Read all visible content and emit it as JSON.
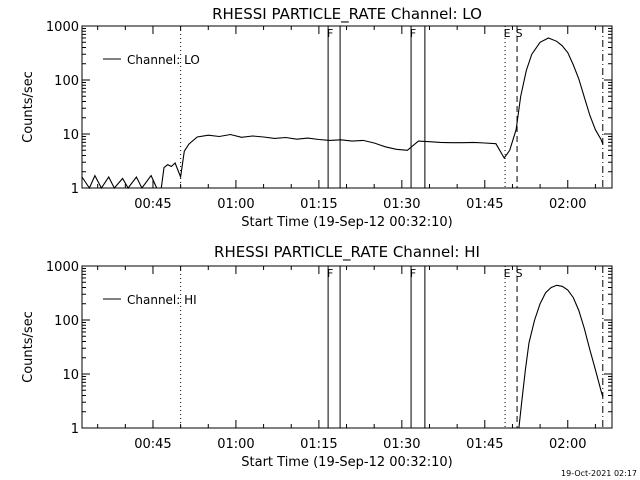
{
  "footer": {
    "timestamp": "19-Oct-2021 02:17"
  },
  "chart_data": [
    {
      "type": "line",
      "title": "RHESSI PARTICLE_RATE Channel: LO",
      "xlabel": "Start Time (19-Sep-12 00:32:10)",
      "ylabel": "Counts/sec",
      "yscale": "log",
      "ylim": [
        1,
        1000
      ],
      "xlim": [
        "00:32:10",
        "02:08:00"
      ],
      "x_ticks": [
        "00:45",
        "01:00",
        "01:15",
        "01:30",
        "01:45",
        "02:00"
      ],
      "y_ticks": [
        "1",
        "10",
        "100",
        "1000"
      ],
      "legend": {
        "position": "top-left",
        "label": "Channel: LO"
      },
      "markers": [
        {
          "time": "00:50:00",
          "style": "dotted",
          "label": ""
        },
        {
          "time": "01:16:40",
          "style": "solid",
          "label": "F"
        },
        {
          "time": "01:18:50",
          "style": "solid",
          "label": ""
        },
        {
          "time": "01:31:40",
          "style": "solid",
          "label": "F"
        },
        {
          "time": "01:34:10",
          "style": "solid",
          "label": ""
        },
        {
          "time": "01:48:40",
          "style": "dotted",
          "label": "E"
        },
        {
          "time": "01:50:50",
          "style": "dashed",
          "label": "S"
        },
        {
          "time": "02:06:20",
          "style": "dashdot",
          "label": ""
        }
      ],
      "series": [
        {
          "name": "Channel: LO",
          "x": [
            "00:32:10",
            "00:33:30",
            "00:34:30",
            "00:35:40",
            "00:37:00",
            "00:38:00",
            "00:39:30",
            "00:40:30",
            "00:42:00",
            "00:43:00",
            "00:44:40",
            "00:45:40",
            "00:46:30",
            "00:47:00",
            "00:47:40",
            "00:48:20",
            "00:49:00",
            "00:50:00",
            "00:50:40",
            "00:51:30",
            "00:53:00",
            "00:55:00",
            "00:57:00",
            "00:59:00",
            "01:01:00",
            "01:03:00",
            "01:05:00",
            "01:07:00",
            "01:09:00",
            "01:11:00",
            "01:13:00",
            "01:15:00",
            "01:17:00",
            "01:19:00",
            "01:21:00",
            "01:23:00",
            "01:25:00",
            "01:27:00",
            "01:29:00",
            "01:31:00",
            "01:33:00",
            "01:35:00",
            "01:37:00",
            "01:39:00",
            "01:41:00",
            "01:43:00",
            "01:45:00",
            "01:47:00",
            "01:48:30",
            "01:49:30",
            "01:50:40",
            "01:51:30",
            "01:52:30",
            "01:53:30",
            "01:55:00",
            "01:56:30",
            "01:58:00",
            "01:59:00",
            "02:00:00",
            "02:01:00",
            "02:02:00",
            "02:03:00",
            "02:04:00",
            "02:05:00",
            "02:06:00",
            "02:06:20"
          ],
          "y": [
            1.6,
            1.0,
            1.7,
            1.0,
            1.6,
            1.0,
            1.5,
            1.0,
            1.6,
            1.0,
            1.7,
            1.0,
            1.0,
            2.4,
            2.7,
            2.5,
            2.9,
            1.6,
            4.8,
            6.5,
            8.8,
            9.5,
            9.0,
            9.8,
            8.7,
            9.2,
            8.8,
            8.3,
            8.6,
            8.0,
            8.4,
            7.9,
            7.6,
            7.8,
            7.4,
            7.6,
            6.8,
            5.8,
            5.2,
            5.0,
            7.4,
            7.2,
            7.0,
            6.9,
            6.9,
            7.0,
            6.8,
            6.6,
            3.6,
            5.0,
            12,
            50,
            150,
            300,
            500,
            600,
            520,
            430,
            320,
            190,
            105,
            48,
            22,
            12,
            8.0,
            6.5
          ]
        }
      ]
    },
    {
      "type": "line",
      "title": "RHESSI PARTICLE_RATE Channel: HI",
      "xlabel": "Start Time (19-Sep-12 00:32:10)",
      "ylabel": "Counts/sec",
      "yscale": "log",
      "ylim": [
        1,
        1000
      ],
      "xlim": [
        "00:32:10",
        "02:08:00"
      ],
      "x_ticks": [
        "00:45",
        "01:00",
        "01:15",
        "01:30",
        "01:45",
        "02:00"
      ],
      "y_ticks": [
        "1",
        "10",
        "100",
        "1000"
      ],
      "legend": {
        "position": "top-left",
        "label": "Channel: HI"
      },
      "markers": [
        {
          "time": "00:50:00",
          "style": "dotted",
          "label": ""
        },
        {
          "time": "01:16:40",
          "style": "solid",
          "label": "F"
        },
        {
          "time": "01:18:50",
          "style": "solid",
          "label": ""
        },
        {
          "time": "01:31:40",
          "style": "solid",
          "label": "F"
        },
        {
          "time": "01:34:10",
          "style": "solid",
          "label": ""
        },
        {
          "time": "01:48:40",
          "style": "dotted",
          "label": "E"
        },
        {
          "time": "01:50:50",
          "style": "dashed",
          "label": "S"
        },
        {
          "time": "02:06:20",
          "style": "dashdot",
          "label": ""
        }
      ],
      "series": [
        {
          "name": "Channel: HI",
          "x": [
            "01:51:10",
            "01:51:40",
            "01:52:20",
            "01:53:00",
            "01:54:00",
            "01:55:00",
            "01:56:00",
            "01:57:00",
            "01:58:00",
            "01:59:00",
            "02:00:00",
            "02:01:00",
            "02:02:00",
            "02:03:00",
            "02:04:00",
            "02:05:00",
            "02:06:00",
            "02:06:20"
          ],
          "y": [
            1.0,
            3,
            12,
            38,
            100,
            200,
            320,
            400,
            440,
            420,
            360,
            260,
            150,
            70,
            28,
            12,
            5,
            3.8
          ]
        }
      ]
    }
  ]
}
